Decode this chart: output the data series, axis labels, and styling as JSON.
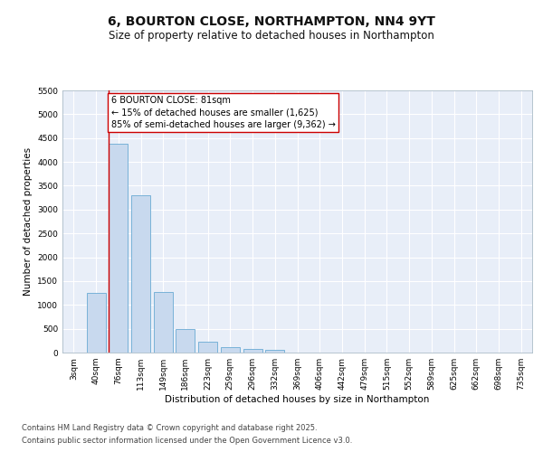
{
  "title": "6, BOURTON CLOSE, NORTHAMPTON, NN4 9YT",
  "subtitle": "Size of property relative to detached houses in Northampton",
  "xlabel": "Distribution of detached houses by size in Northampton",
  "ylabel": "Number of detached properties",
  "categories": [
    "3sqm",
    "40sqm",
    "76sqm",
    "113sqm",
    "149sqm",
    "186sqm",
    "223sqm",
    "259sqm",
    "296sqm",
    "332sqm",
    "369sqm",
    "406sqm",
    "442sqm",
    "479sqm",
    "515sqm",
    "552sqm",
    "589sqm",
    "625sqm",
    "662sqm",
    "698sqm",
    "735sqm"
  ],
  "values": [
    0,
    1250,
    4380,
    3300,
    1270,
    500,
    220,
    110,
    70,
    55,
    0,
    0,
    0,
    0,
    0,
    0,
    0,
    0,
    0,
    0,
    0
  ],
  "bar_color": "#c8d9ee",
  "bar_edge_color": "#6aaad4",
  "property_line_color": "#cc0000",
  "property_line_index": 2,
  "annotation_text": "6 BOURTON CLOSE: 81sqm\n← 15% of detached houses are smaller (1,625)\n85% of semi-detached houses are larger (9,362) →",
  "annotation_box_edge": "#cc0000",
  "ylim": [
    0,
    5500
  ],
  "yticks": [
    0,
    500,
    1000,
    1500,
    2000,
    2500,
    3000,
    3500,
    4000,
    4500,
    5000,
    5500
  ],
  "grid_color": "#d8e4f0",
  "background_color": "#e8eef8",
  "footer_line1": "Contains HM Land Registry data © Crown copyright and database right 2025.",
  "footer_line2": "Contains public sector information licensed under the Open Government Licence v3.0.",
  "title_fontsize": 10,
  "subtitle_fontsize": 8.5,
  "axis_label_fontsize": 7.5,
  "tick_fontsize": 6.5,
  "annotation_fontsize": 7,
  "footer_fontsize": 6
}
